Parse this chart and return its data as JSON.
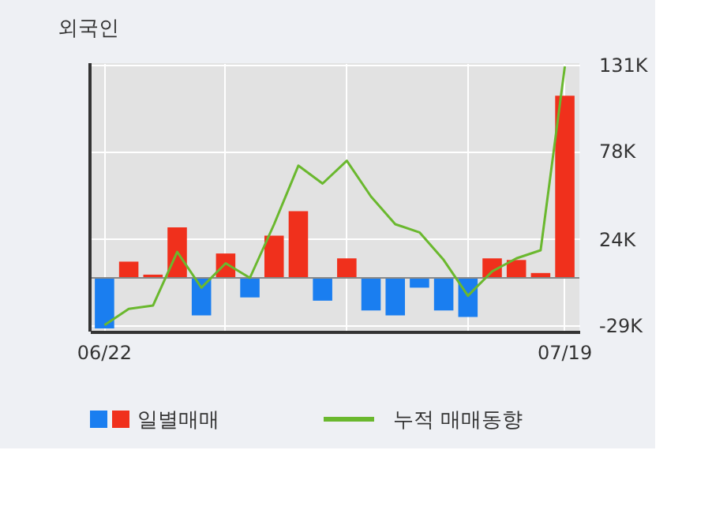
{
  "chart_data": {
    "type": "bar",
    "title": "외국인",
    "categories": [
      "06/22",
      null,
      null,
      null,
      null,
      null,
      null,
      null,
      null,
      null,
      null,
      null,
      null,
      null,
      null,
      null,
      null,
      null,
      null,
      "07/19"
    ],
    "series": [
      {
        "name": "일별매매",
        "colors": [
          "#1a7ef0",
          "#f0301c",
          "#f0301c",
          "#f0301c",
          "#1a7ef0",
          "#f0301c",
          "#1a7ef0",
          "#f0301c",
          "#f0301c",
          "#1a7ef0",
          "#f0301c",
          "#1a7ef0",
          "#1a7ef0",
          "#1a7ef0",
          "#1a7ef0",
          "#1a7ef0",
          "#f0301c",
          "#f0301c",
          "#f0301c",
          "#f0301c"
        ],
        "values": [
          -31,
          10,
          2,
          31,
          -23,
          15,
          -12,
          26,
          41,
          -14,
          12,
          -20,
          -23,
          -6,
          -20,
          -24,
          12,
          11,
          3,
          112
        ]
      },
      {
        "name": "누적 매매동향",
        "type": "line",
        "color": "#6ab82e",
        "values": [
          -29,
          -19,
          -17,
          16,
          -6,
          9,
          0,
          33,
          69,
          58,
          72,
          50,
          33,
          28,
          11,
          -11,
          4,
          12,
          17,
          130
        ]
      }
    ],
    "ylim": [
      -33,
      132
    ],
    "yticks": [
      {
        "value": 131,
        "label": "131K"
      },
      {
        "value": 78,
        "label": "78K"
      },
      {
        "value": 24,
        "label": "24K"
      },
      {
        "value": -29,
        "label": "-29K"
      }
    ],
    "ref_lines": [
      {
        "axis": "y",
        "value": 0,
        "color": "#888888"
      }
    ],
    "grid": true,
    "legend": "bottom"
  }
}
